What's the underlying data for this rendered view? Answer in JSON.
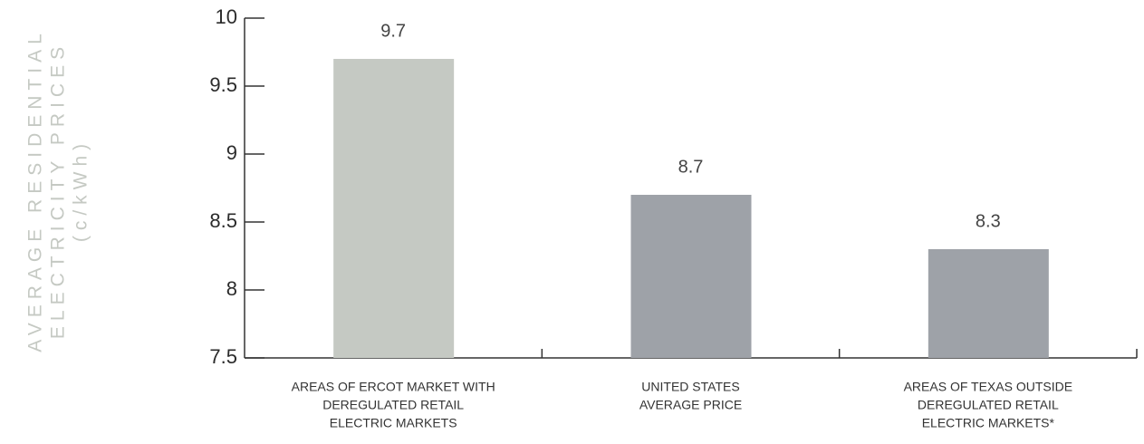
{
  "chart_data": {
    "type": "bar",
    "y_label": [
      "AVERAGE RESIDENTIAL",
      "ELECTRICITY PRICES",
      "(c/kWh)"
    ],
    "categories": [
      [
        "AREAS OF ERCOT MARKET WITH",
        "DEREGULATED RETAIL",
        "ELECTRIC MARKETS"
      ],
      [
        "UNITED STATES",
        "AVERAGE PRICE"
      ],
      [
        "AREAS OF TEXAS OUTSIDE",
        "DEREGULATED RETAIL",
        "ELECTRIC MARKETS*"
      ]
    ],
    "values": [
      9.7,
      8.7,
      8.3
    ],
    "colors": [
      "#c5c9c3",
      "#9ea2a8",
      "#9ea2a8"
    ],
    "ylim": [
      7.5,
      10
    ],
    "yticks": [
      7.5,
      8,
      8.5,
      9,
      9.5,
      10
    ],
    "grid": false
  }
}
